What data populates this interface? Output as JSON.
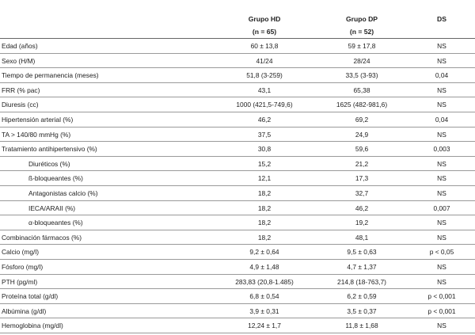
{
  "header": {
    "col1_title": "Grupo HD",
    "col1_sub": "(n = 65)",
    "col2_title": "Grupo DP",
    "col2_sub": "(n = 52)",
    "col3_title": "DS"
  },
  "rows": [
    {
      "label": "Edad (años)",
      "hd": "60 ± 13,8",
      "dp": "59  ± 17,8",
      "ds": "NS",
      "indent": false
    },
    {
      "label": "Sexo (H/M)",
      "hd": "41/24",
      "dp": "28/24",
      "ds": "NS",
      "indent": false
    },
    {
      "label": "Tiempo de permanencia (meses)",
      "hd": "51,8 (3-259)",
      "dp": "33,5 (3-93)",
      "ds": "0,04",
      "indent": false
    },
    {
      "label": "FRR (% pac)",
      "hd": "43,1",
      "dp": "65,38",
      "ds": "NS",
      "indent": false
    },
    {
      "label": "Diuresis (cc)",
      "hd": "1000 (421,5-749,6)",
      "dp": "1625 (482-981,6)",
      "ds": "NS",
      "indent": false
    },
    {
      "label": "Hipertensión arterial (%)",
      "hd": "46,2",
      "dp": "69,2",
      "ds": "0,04",
      "indent": false
    },
    {
      "label": "TA > 140/80 mmHg (%)",
      "hd": "37,5",
      "dp": "24,9",
      "ds": "NS",
      "indent": false
    },
    {
      "label": "Tratamiento antihipertensivo (%)",
      "hd": "30,8",
      "dp": "59,6",
      "ds": "0,003",
      "indent": false
    },
    {
      "label": "Diuréticos (%)",
      "hd": "15,2",
      "dp": "21,2",
      "ds": "NS",
      "indent": true
    },
    {
      "label": "ß-bloqueantes (%)",
      "hd": "12,1",
      "dp": "17,3",
      "ds": "NS",
      "indent": true
    },
    {
      "label": "Antagonistas calcio (%)",
      "hd": "18,2",
      "dp": "32,7",
      "ds": "NS",
      "indent": true
    },
    {
      "label": "IECA/ARAII (%)",
      "hd": "18,2",
      "dp": "46,2",
      "ds": "0,007",
      "indent": true
    },
    {
      "label": "α-bloqueantes (%)",
      "hd": "18,2",
      "dp": "19,2",
      "ds": "NS",
      "indent": true
    },
    {
      "label": "Combinación fármacos (%)",
      "hd": "18,2",
      "dp": "48,1",
      "ds": "NS",
      "indent": false
    },
    {
      "label": "Calcio (mg/l)",
      "hd": "9,2 ± 0,64",
      "dp": "9,5 ± 0,63",
      "ds": "p < 0,05",
      "indent": false
    },
    {
      "label": "Fósforo (mg/l)",
      "hd": "4,9 ± 1,48",
      "dp": "4,7 ± 1,37",
      "ds": "NS",
      "indent": false
    },
    {
      "label": "PTH (pg/ml)",
      "hd": "283,83 (20,8-1.485)",
      "dp": "214,8 (18-763,7)",
      "ds": "NS",
      "indent": false
    },
    {
      "label": "Proteína total (g/dl)",
      "hd": "6,8 ± 0,54",
      "dp": "6,2 ± 0,59",
      "ds": "p < 0,001",
      "indent": false
    },
    {
      "label": "Albúmina (g/dl)",
      "hd": "3,9 ± 0,31",
      "dp": "3,5 ± 0,37",
      "ds": "p < 0,001",
      "indent": false
    },
    {
      "label": "Hemoglobina (mg/dl)",
      "hd": "12,24 ± 1,7",
      "dp": "11,8 ± 1,68",
      "ds": "NS",
      "indent": false
    }
  ]
}
